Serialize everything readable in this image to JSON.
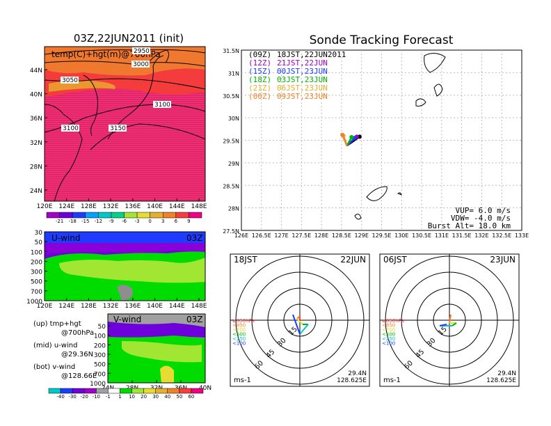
{
  "left_map": {
    "title": "03Z,22JUN2011 (init)",
    "label": "temp(C)+hgt(m)@700hPa",
    "lat_ticks": [
      "44N",
      "40N",
      "36N",
      "32N",
      "28N",
      "24N"
    ],
    "lon_ticks": [
      "120E",
      "124E",
      "128E",
      "132E",
      "136E",
      "140E",
      "144E",
      "148E"
    ],
    "contour_labels": [
      "2950",
      "3000",
      "3050",
      "3100",
      "3100",
      "3150"
    ],
    "colorbar_labels": [
      "-21",
      "-18",
      "-15",
      "-12",
      "-9",
      "-6",
      "-3",
      "0",
      "3",
      "6",
      "9"
    ],
    "colorbar_colors": [
      "#a000c8",
      "#6e00dc",
      "#1e3cff",
      "#00a0ff",
      "#00c8c8",
      "#00d28c",
      "#a0e632",
      "#e6dc32",
      "#e6af2d",
      "#f08228",
      "#fa3c3c",
      "#f00082"
    ]
  },
  "u_wind": {
    "label": "U-wind",
    "time": "03Z",
    "p_ticks": [
      "30",
      "50",
      "100",
      "200",
      "300",
      "500",
      "700",
      "1000"
    ],
    "lon_ticks": [
      "120E",
      "124E",
      "128E",
      "132E",
      "136E",
      "140E",
      "144E",
      "148E"
    ]
  },
  "v_wind": {
    "label": "V-wind",
    "time": "03Z",
    "p_ticks": [
      "50",
      "100",
      "200",
      "300",
      "500",
      "700",
      "1000"
    ],
    "lat_ticks": [
      "24N",
      "28N",
      "32N",
      "36N",
      "40N"
    ]
  },
  "legend": {
    "up1": "(up) tmp+hgt",
    "up2": "@700hPa",
    "mid1": "(mid) u-wind",
    "mid2": "@29.36N",
    "bot1": "(bot) v-wind",
    "bot2": "@128.66E"
  },
  "wind_colorbar_labels": [
    "-40",
    "-30",
    "-20",
    "-10",
    "-1",
    "1",
    "10",
    "20",
    "30",
    "40",
    "50",
    "60"
  ],
  "wind_colorbar_colors": [
    "#00c8c8",
    "#1e3cff",
    "#6e00dc",
    "#a000c8",
    "#a0a0a0",
    "#ffffff",
    "#00dc00",
    "#a0e632",
    "#e6dc32",
    "#e6af2d",
    "#f08228",
    "#fa3c3c",
    "#f00082"
  ],
  "track": {
    "title": "Sonde Tracking Forecast",
    "launches": [
      {
        "utc": "(09Z)",
        "text": "18JST,22JUN2011",
        "color": "#000000"
      },
      {
        "utc": "(12Z)",
        "text": "21JST,22JUN",
        "color": "#a000c8"
      },
      {
        "utc": "(15Z)",
        "text": "00JST,23JUN",
        "color": "#1e3cff"
      },
      {
        "utc": "(18Z)",
        "text": "03JST,23JUN",
        "color": "#00b400"
      },
      {
        "utc": "(21Z)",
        "text": "06JST,23JUN",
        "color": "#e6af2d"
      },
      {
        "utc": "(00Z)",
        "text": "09JST,23JUN",
        "color": "#f08228"
      }
    ],
    "lat_ticks": [
      "31.5N",
      "31N",
      "30.5N",
      "30N",
      "29.5N",
      "29N",
      "28.5N",
      "28N",
      "27.5N"
    ],
    "lon_ticks": [
      "126E",
      "126.5E",
      "127E",
      "127.5E",
      "128E",
      "128.5E",
      "129E",
      "129.5E",
      "130E",
      "130.5E",
      "131E",
      "131.5E",
      "132E",
      "132.5E",
      "133E"
    ],
    "vup": "VUP= 6.0 m/s",
    "vdw": "VDW= -4.0 m/s",
    "burst": "Burst Alt= 18.0 km"
  },
  "hodo_left": {
    "time": "18JST",
    "date": "22JUN",
    "rings": [
      "15",
      "30",
      "45",
      "60"
    ],
    "levels": [
      {
        "text": "≥850hPa",
        "color": "#fa3c3c"
      },
      {
        "text": "<850",
        "color": "#f08228"
      },
      {
        "text": "<700",
        "color": "#e6dc32"
      },
      {
        "text": "<500",
        "color": "#00b400"
      },
      {
        "text": "<250",
        "color": "#00c8c8"
      },
      {
        "text": "<100",
        "color": "#1e3cff"
      }
    ],
    "unit": "ms-1",
    "lat": "29.4N",
    "lon": "128.625E"
  },
  "hodo_right": {
    "time": "06JST",
    "date": "23JUN",
    "rings": [
      "15",
      "30",
      "45",
      "60"
    ],
    "levels": [
      {
        "text": "≥850hPa",
        "color": "#fa3c3c"
      },
      {
        "text": "<850",
        "color": "#f08228"
      },
      {
        "text": "<700",
        "color": "#e6dc32"
      },
      {
        "text": "<500",
        "color": "#00b400"
      },
      {
        "text": "<250",
        "color": "#00c8c8"
      },
      {
        "text": "<100",
        "color": "#1e3cff"
      }
    ],
    "unit": "ms-1",
    "lat": "29.4N",
    "lon": "128.625E"
  },
  "chart_data": [
    {
      "type": "heatmap",
      "title": "03Z,22JUN2011 (init)",
      "subtitle": "temp(C)+hgt(m)@700hPa",
      "xlim": [
        120,
        149
      ],
      "ylim": [
        22,
        48
      ],
      "contour_labels": [
        2950,
        3000,
        3050,
        3100,
        3100,
        3150
      ]
    },
    {
      "type": "heatmap",
      "title": "U-wind 03Z",
      "x_ticks": [
        "120E",
        "124E",
        "128E",
        "132E",
        "136E",
        "140E",
        "144E",
        "148E"
      ],
      "y_ticks": [
        "30",
        "50",
        "100",
        "200",
        "300",
        "500",
        "700",
        "1000"
      ]
    },
    {
      "type": "heatmap",
      "title": "V-wind 03Z",
      "x_ticks": [
        "24N",
        "28N",
        "32N",
        "36N",
        "40N"
      ],
      "y_ticks": [
        "50",
        "100",
        "200",
        "300",
        "500",
        "700",
        "1000"
      ]
    },
    {
      "type": "scatter",
      "title": "Sonde Tracking Forecast",
      "xlim": [
        126,
        133
      ],
      "ylim": [
        27.5,
        31.5
      ],
      "series": [
        {
          "name": "18JST,22JUN2011",
          "x": [
            128.63,
            128.75,
            128.95
          ],
          "y": [
            29.38,
            29.45,
            29.58
          ]
        },
        {
          "name": "21JST,22JUN",
          "x": [
            128.63,
            128.72,
            128.88
          ],
          "y": [
            29.38,
            29.45,
            29.58
          ]
        },
        {
          "name": "00JST,23JUN",
          "x": [
            128.63,
            128.7,
            128.82
          ],
          "y": [
            29.38,
            29.43,
            29.55
          ]
        },
        {
          "name": "03JST,23JUN",
          "x": [
            128.63,
            128.68,
            128.75
          ],
          "y": [
            29.38,
            29.45,
            29.57
          ]
        },
        {
          "name": "06JST,23JUN",
          "x": [
            128.63,
            128.6,
            128.55
          ],
          "y": [
            29.38,
            29.48,
            29.6
          ]
        },
        {
          "name": "09JST,23JUN",
          "x": [
            128.63,
            128.58,
            128.52
          ],
          "y": [
            29.38,
            29.5,
            29.62
          ]
        }
      ]
    }
  ]
}
